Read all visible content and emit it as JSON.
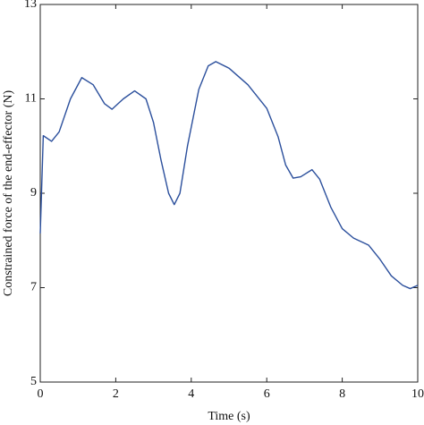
{
  "chart_data": {
    "type": "line",
    "xlabel": "Time (s)",
    "ylabel": "Constrained force of the end-effector (N)",
    "x": [
      0,
      0.08,
      0.3,
      0.5,
      0.8,
      1.1,
      1.4,
      1.7,
      1.9,
      2.2,
      2.5,
      2.8,
      3.0,
      3.2,
      3.4,
      3.55,
      3.7,
      3.9,
      4.2,
      4.45,
      4.65,
      5.0,
      5.5,
      6.0,
      6.3,
      6.5,
      6.7,
      6.9,
      7.2,
      7.4,
      7.7,
      8.0,
      8.3,
      8.7,
      9.0,
      9.3,
      9.6,
      9.8,
      10
    ],
    "series": [
      {
        "color": "#2b4f9c",
        "values": [
          8.15,
          10.22,
          10.1,
          10.3,
          11.0,
          11.45,
          11.3,
          10.9,
          10.78,
          11.0,
          11.17,
          11.0,
          10.5,
          9.7,
          9.0,
          8.76,
          9.0,
          10.0,
          11.2,
          11.7,
          11.79,
          11.65,
          11.3,
          10.8,
          10.2,
          9.6,
          9.32,
          9.35,
          9.5,
          9.3,
          8.7,
          8.25,
          8.05,
          7.9,
          7.6,
          7.25,
          7.05,
          6.98,
          7.05
        ]
      }
    ],
    "xlim": [
      0,
      10
    ],
    "xticks": [
      0,
      2,
      4,
      6,
      8,
      10
    ],
    "ylim": [
      5,
      13
    ],
    "yticks": [
      5,
      7,
      9,
      11,
      13
    ]
  }
}
